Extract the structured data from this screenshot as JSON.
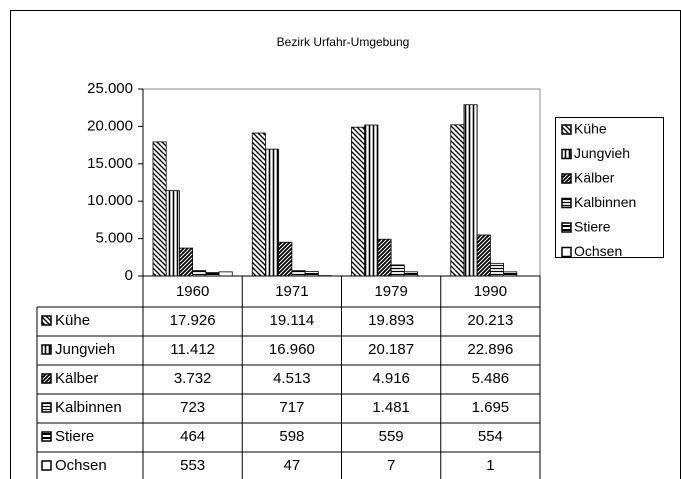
{
  "chart_data": {
    "type": "bar",
    "title": "Bezirk Urfahr-Umgebung",
    "categories": [
      "1960",
      "1971",
      "1979",
      "1990"
    ],
    "series": [
      {
        "name": "Kühe",
        "pattern": "diagonal-down",
        "color": "#000000",
        "values": [
          17926,
          19114,
          19893,
          20213
        ],
        "value_labels": [
          "17.926",
          "19.114",
          "19.893",
          "20.213"
        ]
      },
      {
        "name": "Jungvieh",
        "pattern": "vertical",
        "color": "#000000",
        "values": [
          11412,
          16960,
          20187,
          22896
        ],
        "value_labels": [
          "11.412",
          "16.960",
          "20.187",
          "22.896"
        ]
      },
      {
        "name": "Kälber",
        "pattern": "diagonal-up",
        "color": "#000000",
        "values": [
          3732,
          4513,
          4916,
          5486
        ],
        "value_labels": [
          "3.732",
          "4.513",
          "4.916",
          "5.486"
        ]
      },
      {
        "name": "Kalbinnen",
        "pattern": "horizontal",
        "color": "#000000",
        "values": [
          723,
          717,
          1481,
          1695
        ],
        "value_labels": [
          "723",
          "717",
          "1.481",
          "1.695"
        ]
      },
      {
        "name": "Stiere",
        "pattern": "horizontal-wide",
        "color": "#000000",
        "values": [
          464,
          598,
          559,
          554
        ],
        "value_labels": [
          "464",
          "598",
          "559",
          "554"
        ]
      },
      {
        "name": "Ochsen",
        "pattern": "none",
        "color": "#000000",
        "values": [
          553,
          47,
          7,
          1
        ],
        "value_labels": [
          "553",
          "47",
          "7",
          "1"
        ]
      }
    ],
    "ylim": [
      0,
      25000
    ],
    "yticks": [
      0,
      {
        "value": 5000,
        "label": "5.000"
      },
      {
        "value": 10000,
        "label": "10.000"
      },
      {
        "value": 15000,
        "label": "15.000"
      },
      {
        "value": 20000,
        "label": "20.000"
      },
      {
        "value": 25000,
        "label": "25.000"
      }
    ],
    "grid": false,
    "legend": "right",
    "data_table": true
  }
}
